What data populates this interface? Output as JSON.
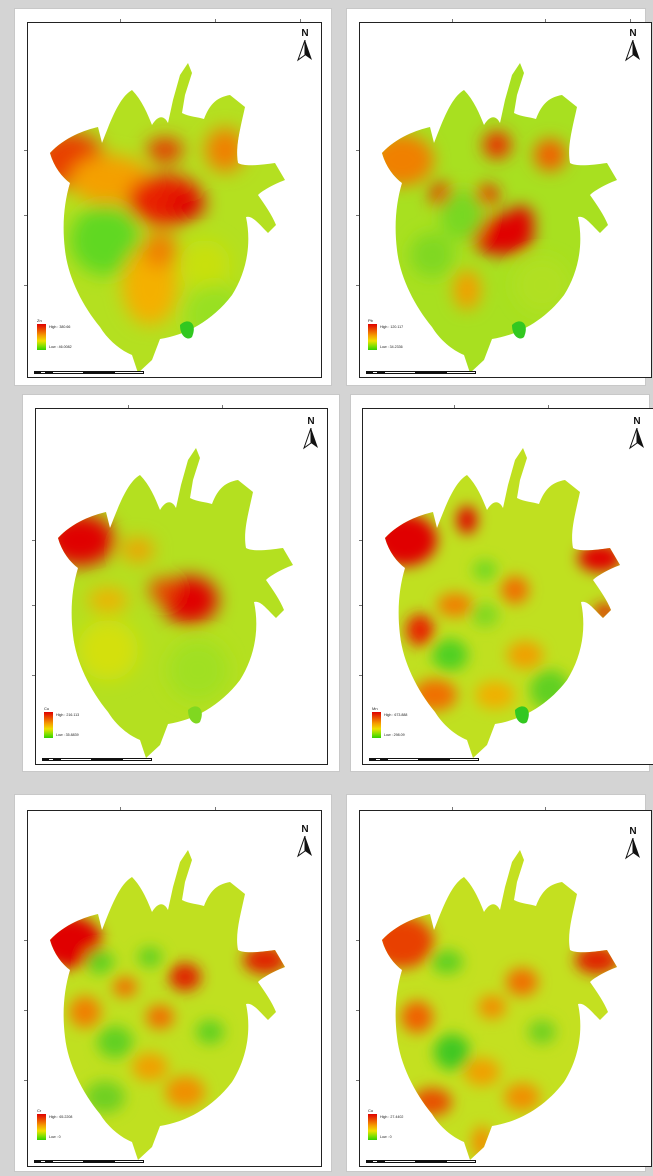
{
  "north_label": "N",
  "panels": [
    {
      "legend_title": "Zn",
      "high": "High : 380.66",
      "low": "Low : 46.0082"
    },
    {
      "legend_title": "Pb",
      "high": "High : 120.117",
      "low": "Low : 34.2336"
    },
    {
      "legend_title": "Cu",
      "high": "High : 216.113",
      "low": "Low : 35.8839"
    },
    {
      "legend_title": "Mn",
      "high": "High : 673.888",
      "low": "Low : 298.09"
    },
    {
      "legend_title": "Cr",
      "high": "High : 65.2208",
      "low": "Low : 0"
    },
    {
      "legend_title": "Co",
      "high": "High : 27.4402",
      "low": "Low : 0"
    }
  ],
  "colors": {
    "high": "#e00000",
    "mid": "#f0e000",
    "low": "#32d000"
  }
}
